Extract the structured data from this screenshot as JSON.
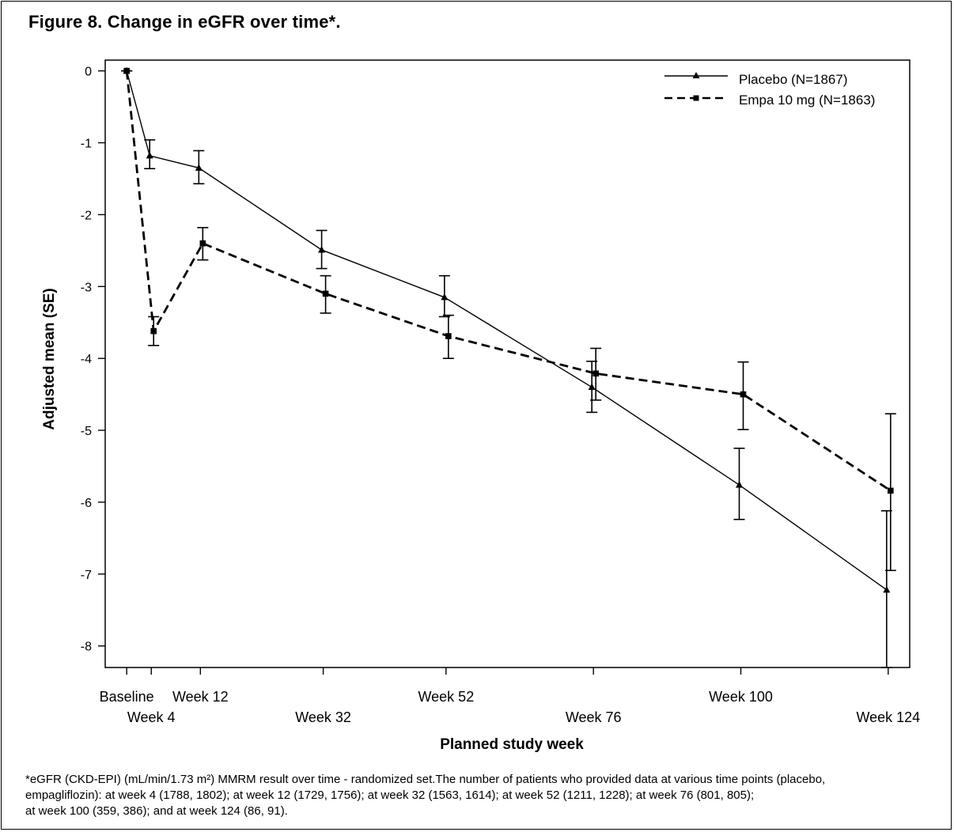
{
  "title": "Figure 8. Change in eGFR over time*.",
  "footnote": {
    "lines": [
      "*eGFR (CKD-EPI) (mL/min/1.73 m²) MMRM result over time - randomized set.The number of patients who provided data at various time points (placebo,",
      "empagliflozin): at week 4 (1788, 1802); at week 12 (1729, 1756); at week 32 (1563, 1614); at week 52 (1211, 1228); at week 76 (801, 805);",
      "at week 100 (359, 386); and at week 124 (86, 91)."
    ]
  },
  "chart_data": {
    "type": "line",
    "xlabel": "Planned study week",
    "ylabel": "Adjusted mean (SE)",
    "x": [
      0,
      4,
      12,
      32,
      52,
      76,
      100,
      124
    ],
    "x_tick_labels": [
      "Baseline",
      "Week 4",
      "Week 12",
      "Week 32",
      "Week 52",
      "Week 76",
      "Week 100",
      "Week 124"
    ],
    "xlim": [
      -3.5,
      127.5
    ],
    "ylim": [
      -8.3,
      0.15
    ],
    "y_ticks": [
      0,
      -1,
      -2,
      -3,
      -4,
      -5,
      -6,
      -7,
      -8
    ],
    "y_tick_labels": [
      "0",
      "-1",
      "-2",
      "-3",
      "-4",
      "-5",
      "-6",
      "-7",
      "-8"
    ],
    "legend_position": "top-right",
    "grid": false,
    "series": [
      {
        "name": "Placebo (N=1867)",
        "line_style": "solid",
        "marker": "triangle",
        "values": [
          0,
          -1.18,
          -1.35,
          -2.49,
          -3.15,
          -4.4,
          -5.76,
          -7.22
        ],
        "error_low": [
          0,
          -1.36,
          -1.57,
          -2.75,
          -3.42,
          -4.75,
          -6.24,
          -8.3
        ],
        "error_high": [
          0,
          -0.96,
          -1.11,
          -2.22,
          -2.85,
          -4.04,
          -5.25,
          -6.12
        ]
      },
      {
        "name": "Empa 10 mg (N=1863)",
        "line_style": "dashed",
        "marker": "square",
        "values": [
          0,
          -3.62,
          -2.4,
          -3.1,
          -3.69,
          -4.21,
          -4.5,
          -5.84
        ],
        "error_low": [
          0,
          -3.82,
          -2.63,
          -3.37,
          -4.0,
          -4.58,
          -4.99,
          -6.95
        ],
        "error_high": [
          0,
          -3.42,
          -2.18,
          -2.85,
          -3.4,
          -3.86,
          -4.05,
          -4.77
        ]
      }
    ]
  }
}
